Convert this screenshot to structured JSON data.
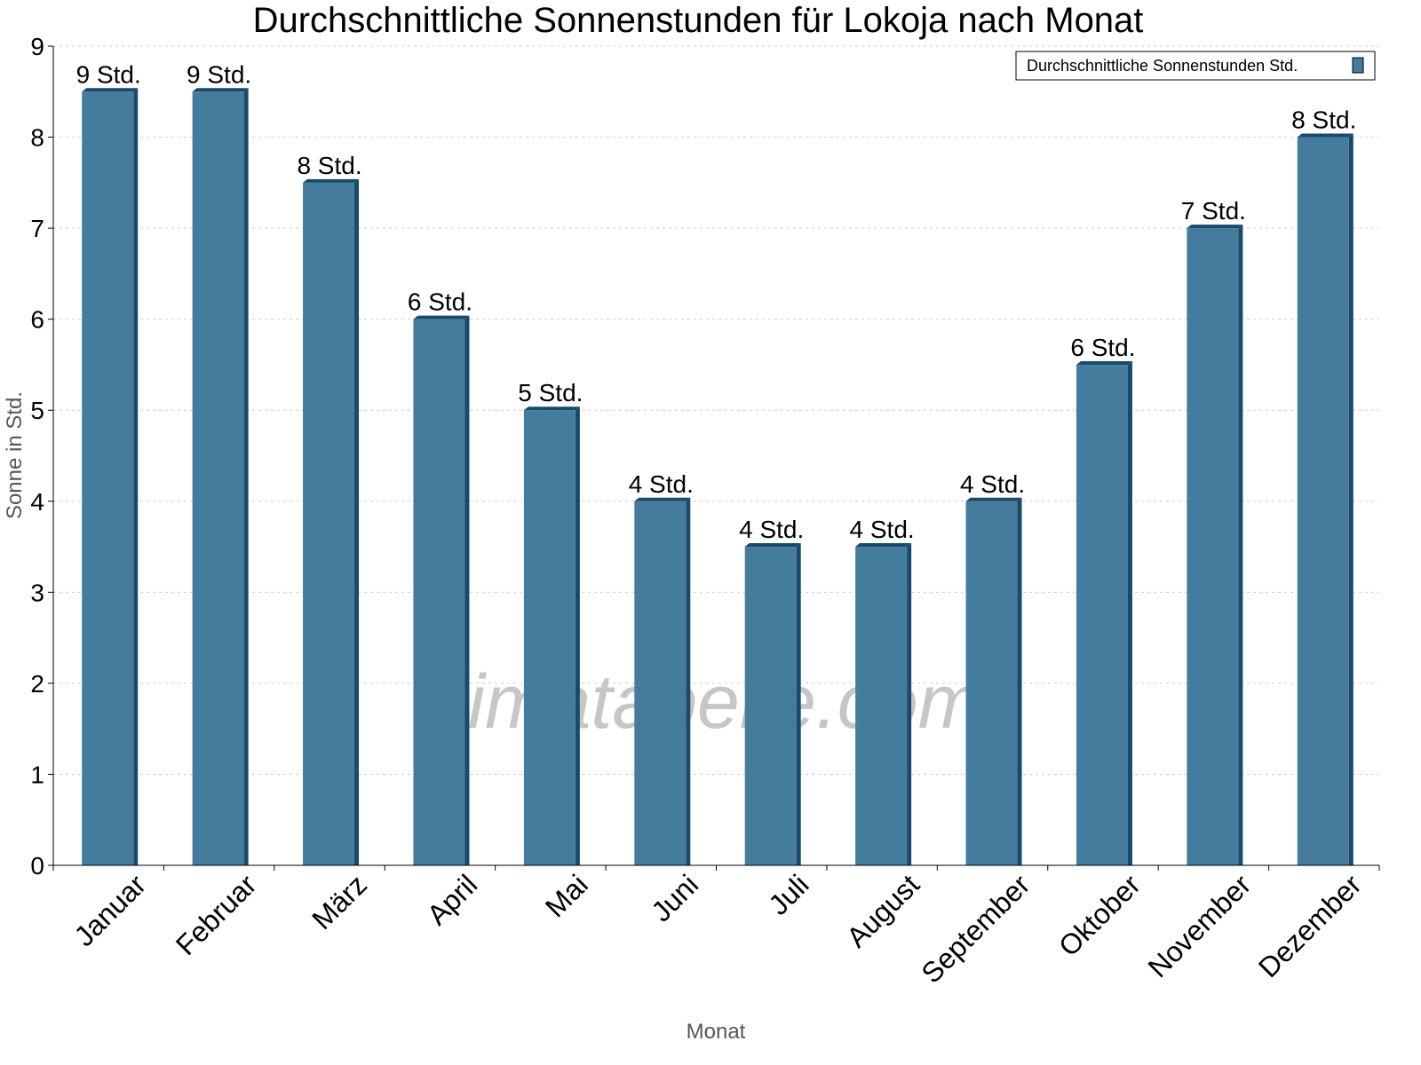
{
  "chart_data": {
    "type": "bar",
    "title": "Durchschnittliche Sonnenstunden für Lokoja nach Monat",
    "xlabel": "Monat",
    "ylabel": "Sonne in Std.",
    "ylim": [
      0,
      9
    ],
    "yticks": [
      "0",
      "1",
      "2",
      "3",
      "4",
      "5",
      "6",
      "7",
      "8",
      "9"
    ],
    "grid": true,
    "legend_position": "top-right",
    "categories": [
      "Januar",
      "Februar",
      "März",
      "April",
      "Mai",
      "Juni",
      "Juli",
      "August",
      "September",
      "Oktober",
      "November",
      "Dezember"
    ],
    "series": [
      {
        "name": "Durchschnittliche Sonnenstunden Std.",
        "values": [
          8.5,
          8.5,
          7.5,
          6,
          5,
          4,
          3.5,
          3.5,
          4,
          5.5,
          7,
          8
        ],
        "data_labels": [
          "9 Std.",
          "9 Std.",
          "8 Std.",
          "6 Std.",
          "5 Std.",
          "4 Std.",
          "4 Std.",
          "4 Std.",
          "4 Std.",
          "6 Std.",
          "7 Std.",
          "8 Std."
        ],
        "color": "#457b9d",
        "side_color": "#1a4a6b"
      }
    ],
    "watermark": "klimatabelle.com"
  }
}
